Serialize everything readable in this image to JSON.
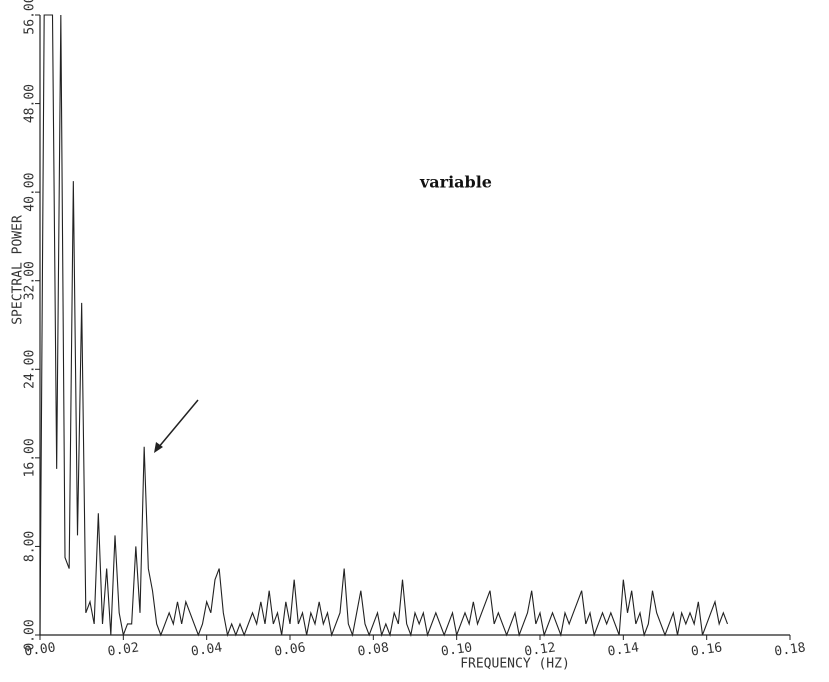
{
  "chart_data": {
    "type": "line",
    "xlabel": "FREQUENCY (HZ)",
    "ylabel": "SPECTRAL POWER",
    "annotation": "variable",
    "color": "#222",
    "xlim": [
      0,
      0.18
    ],
    "xticks": [
      {
        "value": 0,
        "label": "0.00"
      },
      {
        "value": 0.02,
        "label": "0.02"
      },
      {
        "value": 0.04,
        "label": "0.04"
      },
      {
        "value": 0.06,
        "label": "0.06"
      },
      {
        "value": 0.08,
        "label": "0.08"
      },
      {
        "value": 0.1,
        "label": "0.10"
      },
      {
        "value": 0.12,
        "label": "0.12"
      },
      {
        "value": 0.14,
        "label": "0.14"
      },
      {
        "value": 0.16,
        "label": "0.16"
      },
      {
        "value": 0.18,
        "label": "0.18"
      }
    ],
    "ylim": [
      0,
      56
    ],
    "yticks": [
      {
        "value": 0,
        "label": "0.00"
      },
      {
        "value": 8,
        "label": "8.00"
      },
      {
        "value": 16,
        "label": "16.00"
      },
      {
        "value": 24,
        "label": "24.00"
      },
      {
        "value": 32,
        "label": "32.00"
      },
      {
        "value": 40,
        "label": "40.00"
      },
      {
        "value": 48,
        "label": "48.00"
      },
      {
        "value": 56,
        "label": "56.00"
      }
    ],
    "x": [
      0,
      0.001,
      0.002,
      0.003,
      0.004,
      0.005,
      0.006,
      0.007,
      0.008,
      0.009,
      0.01,
      0.011,
      0.012,
      0.013,
      0.014,
      0.015,
      0.016,
      0.017,
      0.018,
      0.019,
      0.02,
      0.021,
      0.022,
      0.023,
      0.024,
      0.025,
      0.026,
      0.027,
      0.028,
      0.029,
      0.03,
      0.031,
      0.032,
      0.033,
      0.034,
      0.035,
      0.036,
      0.037,
      0.038,
      0.039,
      0.04,
      0.041,
      0.042,
      0.043,
      0.044,
      0.045,
      0.046,
      0.047,
      0.048,
      0.049,
      0.05,
      0.051,
      0.052,
      0.053,
      0.054,
      0.055,
      0.056,
      0.057,
      0.058,
      0.059,
      0.06,
      0.061,
      0.062,
      0.063,
      0.064,
      0.065,
      0.066,
      0.067,
      0.068,
      0.069,
      0.07,
      0.071,
      0.072,
      0.073,
      0.074,
      0.075,
      0.076,
      0.077,
      0.078,
      0.079,
      0.08,
      0.081,
      0.082,
      0.083,
      0.084,
      0.085,
      0.086,
      0.087,
      0.088,
      0.089,
      0.09,
      0.091,
      0.092,
      0.093,
      0.094,
      0.095,
      0.096,
      0.097,
      0.098,
      0.099,
      0.1,
      0.101,
      0.102,
      0.103,
      0.104,
      0.105,
      0.106,
      0.107,
      0.108,
      0.109,
      0.11,
      0.111,
      0.112,
      0.113,
      0.114,
      0.115,
      0.116,
      0.117,
      0.118,
      0.119,
      0.12,
      0.121,
      0.122,
      0.123,
      0.124,
      0.125,
      0.126,
      0.127,
      0.128,
      0.129,
      0.13,
      0.131,
      0.132,
      0.133,
      0.134,
      0.135,
      0.136,
      0.137,
      0.138,
      0.139,
      0.14,
      0.141,
      0.142,
      0.143,
      0.144,
      0.145,
      0.146,
      0.147,
      0.148,
      0.149,
      0.15,
      0.151,
      0.152,
      0.153,
      0.154,
      0.155,
      0.156,
      0.157,
      0.158,
      0.159,
      0.16,
      0.161,
      0.162,
      0.163,
      0.164,
      0.165
    ],
    "values": [
      0,
      56,
      56,
      56,
      15,
      56,
      7,
      6,
      41,
      9,
      30,
      2,
      3,
      1,
      11,
      1,
      6,
      0,
      9,
      2,
      0,
      1,
      1,
      8,
      2,
      17,
      6,
      4,
      1,
      0,
      1,
      2,
      1,
      3,
      1,
      3,
      2,
      1,
      0,
      1,
      3,
      2,
      5,
      6,
      2,
      0,
      1,
      0,
      1,
      0,
      1,
      2,
      1,
      3,
      1,
      4,
      1,
      2,
      0,
      3,
      1,
      5,
      1,
      2,
      0,
      2,
      1,
      3,
      1,
      2,
      0,
      1,
      2,
      6,
      1,
      0,
      2,
      4,
      1,
      0,
      1,
      2,
      0,
      1,
      0,
      2,
      1,
      5,
      1,
      0,
      2,
      1,
      2,
      0,
      1,
      2,
      1,
      0,
      1,
      2,
      0,
      1,
      2,
      1,
      3,
      1,
      2,
      3,
      4,
      1,
      2,
      1,
      0,
      1,
      2,
      0,
      1,
      2,
      4,
      1,
      2,
      0,
      1,
      2,
      1,
      0,
      2,
      1,
      2,
      3,
      4,
      1,
      2,
      0,
      1,
      2,
      1,
      2,
      1,
      0,
      5,
      2,
      4,
      1,
      2,
      0,
      1,
      4,
      2,
      1,
      0,
      1,
      2,
      0,
      2,
      1,
      2,
      1,
      3,
      0,
      1,
      2,
      3,
      1,
      2,
      1
    ]
  }
}
